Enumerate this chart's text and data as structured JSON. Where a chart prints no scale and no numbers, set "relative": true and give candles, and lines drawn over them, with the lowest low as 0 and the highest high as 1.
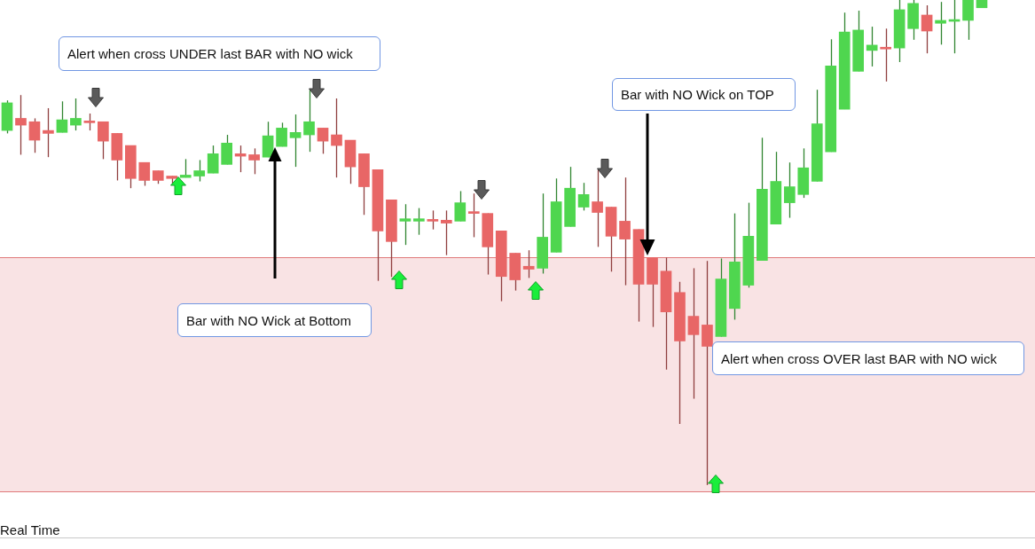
{
  "chart_data": {
    "type": "candlestick",
    "relative": true,
    "categories": [
      null,
      null,
      null,
      null,
      null,
      null,
      null,
      null,
      null,
      null,
      null,
      null,
      null,
      null,
      null,
      null,
      null,
      null,
      null,
      null,
      null,
      null,
      null,
      null,
      null,
      null,
      null,
      null,
      null,
      null,
      null,
      null,
      null,
      null,
      null,
      null,
      null,
      null,
      null,
      null,
      null,
      null,
      null,
      null,
      null,
      null,
      null,
      null,
      null,
      null,
      null,
      null,
      null,
      null,
      null,
      null,
      null,
      null,
      null,
      null,
      null,
      null,
      null,
      null,
      null,
      null,
      null,
      null,
      null,
      null,
      null,
      null
    ],
    "ohlc": [
      [
        0.731,
        0.793,
        0.725,
        0.788
      ],
      [
        0.756,
        0.804,
        0.681,
        0.742
      ],
      [
        0.749,
        0.756,
        0.685,
        0.711
      ],
      [
        0.731,
        0.777,
        0.676,
        0.725
      ],
      [
        0.727,
        0.791,
        0.727,
        0.753
      ],
      [
        0.742,
        0.797,
        0.731,
        0.756
      ],
      [
        0.749,
        0.766,
        0.731,
        0.747
      ],
      [
        0.749,
        0.749,
        0.672,
        0.709
      ],
      [
        0.725,
        0.725,
        0.628,
        0.67
      ],
      [
        0.7,
        0.7,
        0.612,
        0.632
      ],
      [
        0.665,
        0.665,
        0.617,
        0.628
      ],
      [
        0.648,
        0.648,
        0.621,
        0.628
      ],
      [
        0.637,
        0.637,
        0.621,
        0.632
      ],
      [
        0.634,
        0.672,
        0.634,
        0.639
      ],
      [
        0.637,
        0.67,
        0.626,
        0.648
      ],
      [
        0.643,
        0.7,
        0.643,
        0.683
      ],
      [
        0.661,
        0.722,
        0.661,
        0.705
      ],
      [
        0.683,
        0.7,
        0.645,
        0.678
      ],
      [
        0.681,
        0.694,
        0.641,
        0.67
      ],
      [
        0.676,
        0.749,
        0.676,
        0.72
      ],
      [
        0.698,
        0.747,
        0.698,
        0.736
      ],
      [
        0.716,
        0.764,
        0.656,
        0.727
      ],
      [
        0.722,
        0.815,
        0.687,
        0.749
      ],
      [
        0.736,
        0.736,
        0.683,
        0.709
      ],
      [
        0.722,
        0.797,
        0.634,
        0.7
      ],
      [
        0.711,
        0.711,
        0.621,
        0.656
      ],
      [
        0.683,
        0.683,
        0.557,
        0.615
      ],
      [
        0.65,
        0.65,
        0.421,
        0.524
      ],
      [
        0.588,
        0.588,
        0.429,
        0.502
      ],
      [
        0.544,
        0.579,
        0.495,
        0.549
      ],
      [
        0.544,
        0.571,
        0.516,
        0.549
      ],
      [
        0.546,
        0.566,
        0.527,
        0.544
      ],
      [
        0.546,
        0.566,
        0.474,
        0.54
      ],
      [
        0.544,
        0.606,
        0.544,
        0.582
      ],
      [
        0.562,
        0.601,
        0.511,
        0.56
      ],
      [
        0.56,
        0.56,
        0.434,
        0.491
      ],
      [
        0.524,
        0.524,
        0.379,
        0.43
      ],
      [
        0.478,
        0.478,
        0.401,
        0.423
      ],
      [
        0.451,
        0.484,
        0.427,
        0.445
      ],
      [
        0.447,
        0.601,
        0.436,
        0.511
      ],
      [
        0.48,
        0.632,
        0.48,
        0.584
      ],
      [
        0.533,
        0.656,
        0.533,
        0.612
      ],
      [
        0.573,
        0.623,
        0.566,
        0.599
      ],
      [
        0.584,
        0.65,
        0.491,
        0.562
      ],
      [
        0.573,
        0.573,
        0.44,
        0.513
      ],
      [
        0.544,
        0.634,
        0.412,
        0.507
      ],
      [
        0.527,
        0.527,
        0.337,
        0.414
      ],
      [
        0.469,
        0.469,
        0.326,
        0.414
      ],
      [
        0.441,
        0.469,
        0.238,
        0.357
      ],
      [
        0.397,
        0.419,
        0.126,
        0.297
      ],
      [
        0.348,
        0.447,
        0.178,
        0.31
      ],
      [
        0.33,
        0.462,
        0,
        0.286
      ],
      [
        0.306,
        0.467,
        0.306,
        0.425
      ],
      [
        0.364,
        0.56,
        0.341,
        0.46
      ],
      [
        0.412,
        0.582,
        0.407,
        0.513
      ],
      [
        0.463,
        0.716,
        0.463,
        0.61
      ],
      [
        0.538,
        0.687,
        0.538,
        0.626
      ],
      [
        0.582,
        0.665,
        0.551,
        0.615
      ],
      [
        0.599,
        0.694,
        0.592,
        0.654
      ],
      [
        0.626,
        0.815,
        0.626,
        0.745
      ],
      [
        0.687,
        0.919,
        0.687,
        0.864
      ],
      [
        0.775,
        0.974,
        0.775,
        0.934
      ],
      [
        0.853,
        0.978,
        0.853,
        0.938
      ],
      [
        0.896,
        0.945,
        0.863,
        0.907
      ],
      [
        0.901,
        0.941,
        0.832,
        0.899
      ],
      [
        0.901,
        1,
        0.872,
        0.98
      ],
      [
        0.941,
        1,
        0.918,
        0.993
      ],
      [
        0.969,
        0.989,
        0.89,
        0.936
      ],
      [
        0.952,
        0.996,
        0.908,
        0.958
      ],
      [
        0.956,
        1,
        0.89,
        0.958
      ],
      [
        0.958,
        1,
        0.918,
        1
      ],
      [
        0.984,
        1,
        0.984,
        1
      ]
    ],
    "colors": [
      "#4fd64f",
      "#e86666",
      "#e86666",
      "#e86666",
      "#4fd64f",
      "#4fd64f",
      "#e86666",
      "#e86666",
      "#e86666",
      "#e86666",
      "#e86666",
      "#e86666",
      "#e86666",
      "#4fd64f",
      "#4fd64f",
      "#4fd64f",
      "#4fd64f",
      "#e86666",
      "#e86666",
      "#4fd64f",
      "#4fd64f",
      "#4fd64f",
      "#4fd64f",
      "#e86666",
      "#e86666",
      "#e86666",
      "#e86666",
      "#e86666",
      "#e86666",
      "#4fd64f",
      "#4fd64f",
      "#e86666",
      "#e86666",
      "#4fd64f",
      "#e86666",
      "#e86666",
      "#e86666",
      "#e86666",
      "#e86666",
      "#4fd64f",
      "#4fd64f",
      "#4fd64f",
      "#4fd64f",
      "#e86666",
      "#e86666",
      "#e86666",
      "#e86666",
      "#e86666",
      "#e86666",
      "#e86666",
      "#e86666",
      "#e86666",
      "#4fd64f",
      "#4fd64f",
      "#4fd64f",
      "#4fd64f",
      "#4fd64f",
      "#4fd64f",
      "#4fd64f",
      "#4fd64f",
      "#4fd64f",
      "#4fd64f",
      "#4fd64f",
      "#4fd64f",
      "#e86666",
      "#4fd64f",
      "#4fd64f",
      "#e86666",
      "#4fd64f",
      "#4fd64f",
      "#4fd64f",
      "#4fd64f"
    ],
    "bands": [
      {
        "axis": "y",
        "from": -0.013,
        "to": 0.469,
        "color": "#f9e3e4"
      }
    ],
    "ref_lines": [
      {
        "axis": "y",
        "value": 0.469,
        "color": "#e07a7a"
      },
      {
        "axis": "y",
        "value": -0.013,
        "color": "#e07a7a"
      }
    ],
    "annotations": [
      "Alert when cross UNDER last BAR with NO wick",
      "Bar with NO Wick at Bottom",
      "Bar with NO Wick on TOP",
      "Alert when cross OVER last BAR with NO wick",
      "Real Time"
    ]
  }
}
